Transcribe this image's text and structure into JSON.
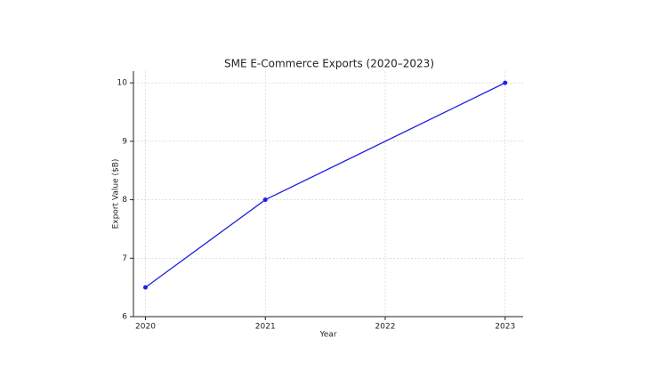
{
  "chart_data": {
    "type": "line",
    "title": "SME E-Commerce Exports (2020–2023)",
    "x_label": "Year",
    "y_label": "Export Value ($B)",
    "x": [
      2020,
      2021,
      2023
    ],
    "values": [
      6.5,
      8,
      10
    ],
    "color": "#1f1fe6",
    "xlim": [
      2019.9,
      2023.15
    ],
    "xticks": [
      2020,
      2021,
      2022,
      2023
    ],
    "ylim": [
      6,
      10.2
    ],
    "yticks": [
      6,
      7,
      8,
      9,
      10
    ],
    "grid": true
  }
}
